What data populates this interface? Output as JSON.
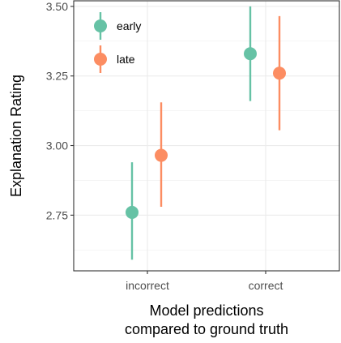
{
  "chart_data": {
    "type": "scatter",
    "subtype": "point-with-error-bars",
    "title": "",
    "xlabel": "Model predictions\ncompared to ground truth",
    "ylabel": "Explanation Rating",
    "categories": [
      "incorrect",
      "correct"
    ],
    "ylim": [
      2.55,
      3.52
    ],
    "yticks": [
      2.75,
      3.0,
      3.25,
      3.5
    ],
    "ytick_labels": [
      "2.75",
      "3.00",
      "3.25",
      "3.50"
    ],
    "grid": true,
    "legend_position": "top-left",
    "series": [
      {
        "name": "early",
        "color": "#66c2a5",
        "values": [
          2.76,
          3.33
        ],
        "lower": [
          2.59,
          3.16
        ],
        "upper": [
          2.94,
          3.5
        ]
      },
      {
        "name": "late",
        "color": "#fc8d62",
        "values": [
          2.965,
          3.26
        ],
        "lower": [
          2.78,
          3.055
        ],
        "upper": [
          3.155,
          3.465
        ]
      }
    ]
  }
}
